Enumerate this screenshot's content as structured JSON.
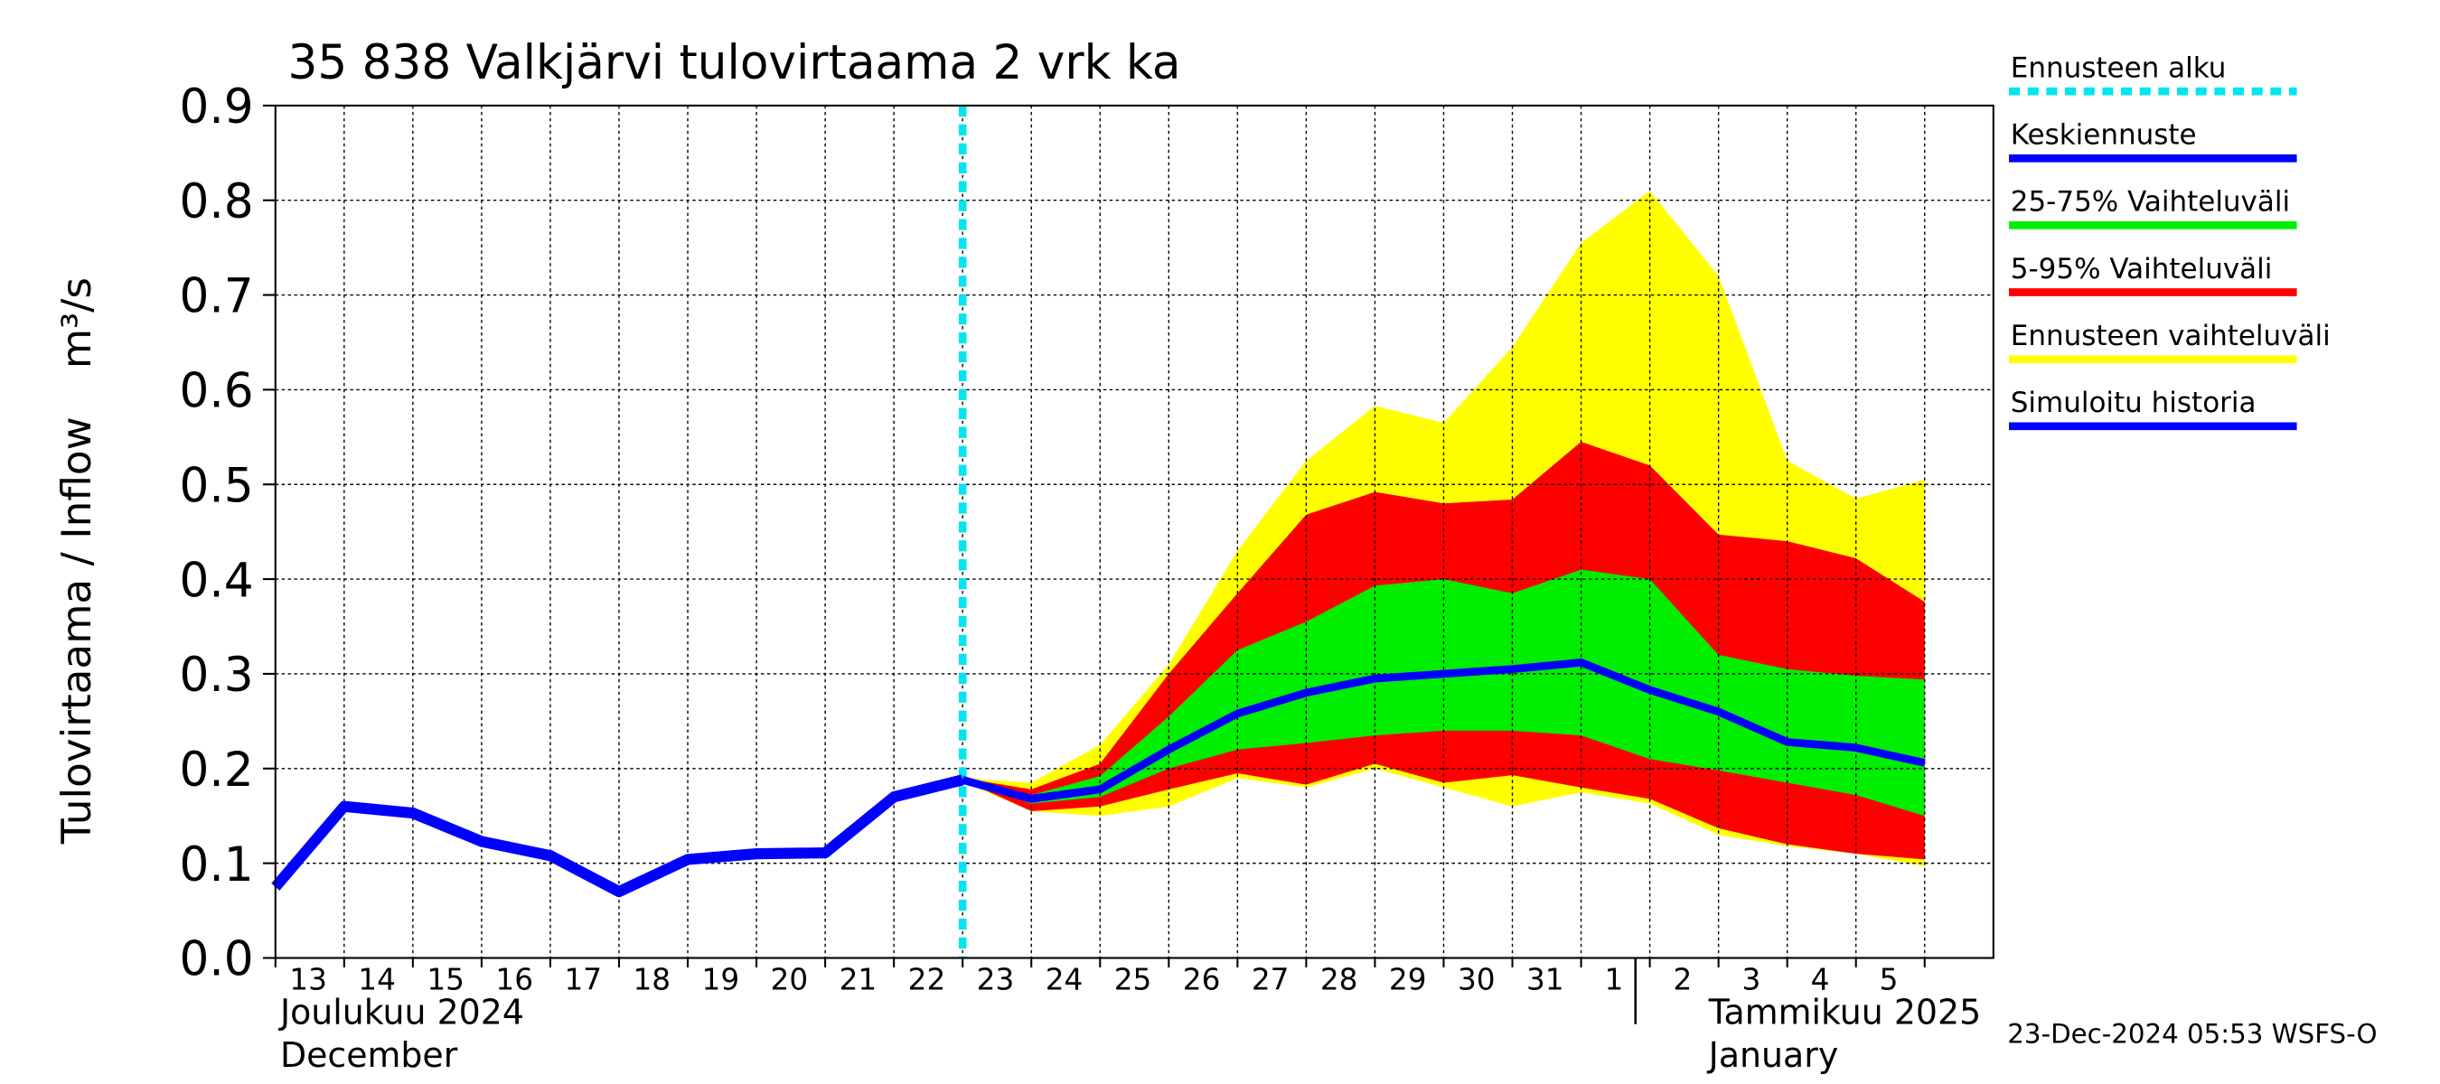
{
  "chart_data": {
    "type": "line",
    "title": "35 838 Valkjärvi tulovirtaama 2 vrk ka",
    "y_label": "Tulovirtaama / Inflow",
    "y_unit": "m³/s",
    "timestamp": "23-Dec-2024 05:53 WSFS-O",
    "months": [
      {
        "name": "Joulukuu  2024",
        "name_en": "December"
      },
      {
        "name": "Tammikuu  2025",
        "name_en": "January"
      }
    ],
    "categories": [
      "13",
      "14",
      "15",
      "16",
      "17",
      "18",
      "19",
      "20",
      "21",
      "22",
      "23",
      "24",
      "25",
      "26",
      "27",
      "28",
      "29",
      "30",
      "31",
      "1",
      "2",
      "3",
      "4",
      "5",
      null
    ],
    "ylim": [
      0,
      0.9
    ],
    "yticks": [
      {
        "value": 0,
        "label": "0.0"
      },
      0.1,
      0.2,
      0.3,
      0.4,
      0.5,
      0.6,
      0.7,
      0.8,
      0.9
    ],
    "grid": true,
    "forecast_start": {
      "name": "Ennusteen alku",
      "color": "#00e5ee"
    },
    "bands": [
      {
        "name": "Ennusteen vaihteluväli",
        "color": "#ffff00",
        "upper": [
          null,
          null,
          null,
          null,
          null,
          null,
          null,
          null,
          null,
          null,
          0.19,
          0.185,
          0.225,
          0.31,
          0.43,
          0.525,
          0.583,
          0.565,
          0.645,
          0.755,
          0.81,
          0.72,
          0.525,
          0.485,
          0.505
        ],
        "lower": [
          null,
          null,
          null,
          null,
          null,
          null,
          null,
          null,
          null,
          null,
          0.186,
          0.155,
          0.15,
          0.16,
          0.19,
          0.18,
          0.2,
          0.18,
          0.16,
          0.175,
          0.163,
          0.13,
          0.118,
          0.11,
          0.097
        ]
      },
      {
        "name": "5-95% Vaihteluväli",
        "color": "#ff0000",
        "upper": [
          null,
          null,
          null,
          null,
          null,
          null,
          null,
          null,
          null,
          null,
          0.19,
          0.178,
          0.205,
          0.3,
          0.385,
          0.468,
          0.492,
          0.48,
          0.484,
          0.545,
          0.52,
          0.447,
          0.44,
          0.422,
          0.376
        ],
        "lower": [
          null,
          null,
          null,
          null,
          null,
          null,
          null,
          null,
          null,
          null,
          0.188,
          0.155,
          0.16,
          0.178,
          0.195,
          0.183,
          0.205,
          0.185,
          0.193,
          0.18,
          0.168,
          0.137,
          0.12,
          0.11,
          0.104
        ]
      },
      {
        "name": "25-75% Vaihteluväli",
        "color": "#00ee00",
        "upper": [
          null,
          null,
          null,
          null,
          null,
          null,
          null,
          null,
          null,
          null,
          0.19,
          0.172,
          0.192,
          0.255,
          0.325,
          0.355,
          0.393,
          0.4,
          0.385,
          0.41,
          0.4,
          0.32,
          0.305,
          0.298,
          0.294
        ],
        "lower": [
          null,
          null,
          null,
          null,
          null,
          null,
          null,
          null,
          null,
          null,
          0.188,
          0.163,
          0.17,
          0.2,
          0.22,
          0.227,
          0.235,
          0.24,
          0.24,
          0.235,
          0.21,
          0.198,
          0.185,
          0.172,
          0.15
        ]
      }
    ],
    "series": [
      {
        "name": "Simuloitu historia",
        "color": "#0000ff",
        "values": [
          0.075,
          0.16,
          0.153,
          0.123,
          0.108,
          0.07,
          0.104,
          0.11,
          0.111,
          0.17,
          0.188,
          null,
          null,
          null,
          null,
          null,
          null,
          null,
          null,
          null,
          null,
          null,
          null,
          null,
          null
        ]
      },
      {
        "name": "Keskiennuste",
        "color": "#0000ff",
        "values": [
          null,
          null,
          null,
          null,
          null,
          null,
          null,
          null,
          null,
          null,
          0.188,
          0.168,
          0.178,
          0.22,
          0.258,
          0.28,
          0.295,
          0.3,
          0.305,
          0.312,
          0.283,
          0.26,
          0.228,
          0.222,
          0.206
        ]
      }
    ]
  }
}
